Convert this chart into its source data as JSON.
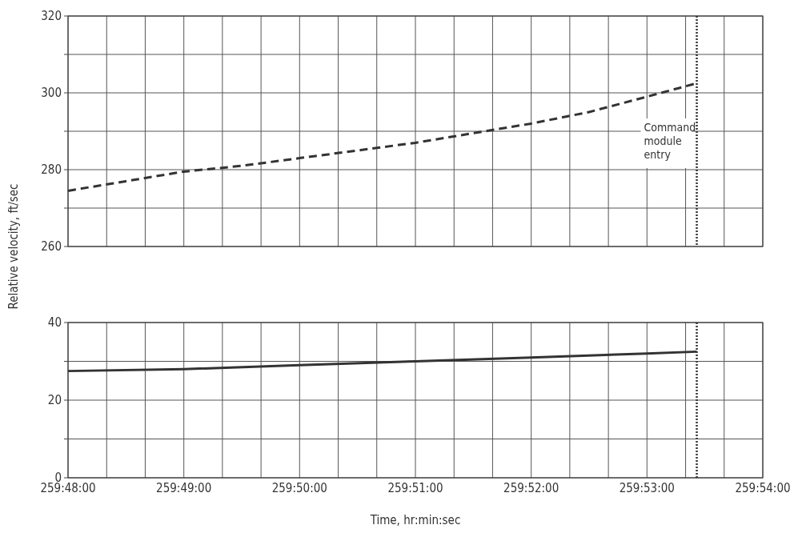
{
  "chart_data": [
    {
      "type": "line",
      "ylabel": "Relative velocity, ft/sec",
      "xlim": [
        259.8,
        259.9
      ],
      "ylim": [
        260,
        320
      ],
      "xticks": [
        259.8,
        {
          "value": 259.80556,
          "label": null
        },
        {
          "value": 259.81111,
          "label": null
        },
        259.81667,
        {
          "value": 259.82222,
          "label": null
        },
        {
          "value": 259.82778,
          "label": null
        },
        259.83333,
        {
          "value": 259.83889,
          "label": null
        },
        {
          "value": 259.84444,
          "label": null
        },
        259.85,
        {
          "value": 259.85556,
          "label": null
        },
        {
          "value": 259.86111,
          "label": null
        },
        259.86667,
        {
          "value": 259.87222,
          "label": null
        },
        {
          "value": 259.87778,
          "label": null
        },
        259.88333,
        {
          "value": 259.88889,
          "label": null
        },
        {
          "value": 259.89444,
          "label": null
        },
        259.9
      ],
      "yticks": [
        260,
        {
          "value": 270,
          "label": null
        },
        280,
        {
          "value": 290,
          "label": null
        },
        300,
        {
          "value": 310,
          "label": null
        },
        320
      ],
      "tick_labels": "y",
      "grid": true,
      "line_style": "dashed",
      "x": [
        259.8,
        259.80833,
        259.81667,
        259.825,
        259.83333,
        259.84167,
        259.85,
        259.85833,
        259.86667,
        259.875,
        259.88333,
        259.8905
      ],
      "series": [
        {
          "color": "#333333",
          "values": [
            274.5,
            277,
            279.5,
            281,
            283,
            285,
            287,
            289.5,
            292,
            295,
            299,
            302.5
          ]
        }
      ],
      "ref_lines": [
        {
          "axis": "x",
          "value": 259.8905,
          "label": "Command\nmodule\nentry",
          "color": "#333333",
          "line_style": "dotted"
        }
      ]
    },
    {
      "type": "line",
      "xlabel": "Time, hr:min:sec",
      "xlim": [
        259.8,
        259.9
      ],
      "ylim": [
        0,
        40
      ],
      "xticks": [
        {
          "value": 259.8,
          "label": "259:48:00"
        },
        {
          "value": 259.80556,
          "label": null
        },
        {
          "value": 259.81111,
          "label": null
        },
        {
          "value": 259.81667,
          "label": "259:49:00"
        },
        {
          "value": 259.82222,
          "label": null
        },
        {
          "value": 259.82778,
          "label": null
        },
        {
          "value": 259.83333,
          "label": "259:50:00"
        },
        {
          "value": 259.83889,
          "label": null
        },
        {
          "value": 259.84444,
          "label": null
        },
        {
          "value": 259.85,
          "label": "259:51:00"
        },
        {
          "value": 259.85556,
          "label": null
        },
        {
          "value": 259.86111,
          "label": null
        },
        {
          "value": 259.86667,
          "label": "259:52:00"
        },
        {
          "value": 259.87222,
          "label": null
        },
        {
          "value": 259.87778,
          "label": null
        },
        {
          "value": 259.88333,
          "label": "259:53:00"
        },
        {
          "value": 259.88889,
          "label": null
        },
        {
          "value": 259.89444,
          "label": null
        },
        {
          "value": 259.9,
          "label": "259:54:00"
        }
      ],
      "yticks": [
        0,
        {
          "value": 10,
          "label": null
        },
        20,
        {
          "value": 30,
          "label": null
        },
        40
      ],
      "grid": true,
      "line_style": "solid",
      "x": [
        259.8,
        259.81667,
        259.83333,
        259.85,
        259.86667,
        259.88333,
        259.8905
      ],
      "series": [
        {
          "color": "#333333",
          "values": [
            27.5,
            28,
            29,
            30,
            31,
            32,
            32.5
          ]
        }
      ],
      "ref_lines": [
        {
          "axis": "x",
          "value": 259.8905,
          "color": "#333333",
          "line_style": "dotted"
        }
      ]
    }
  ]
}
